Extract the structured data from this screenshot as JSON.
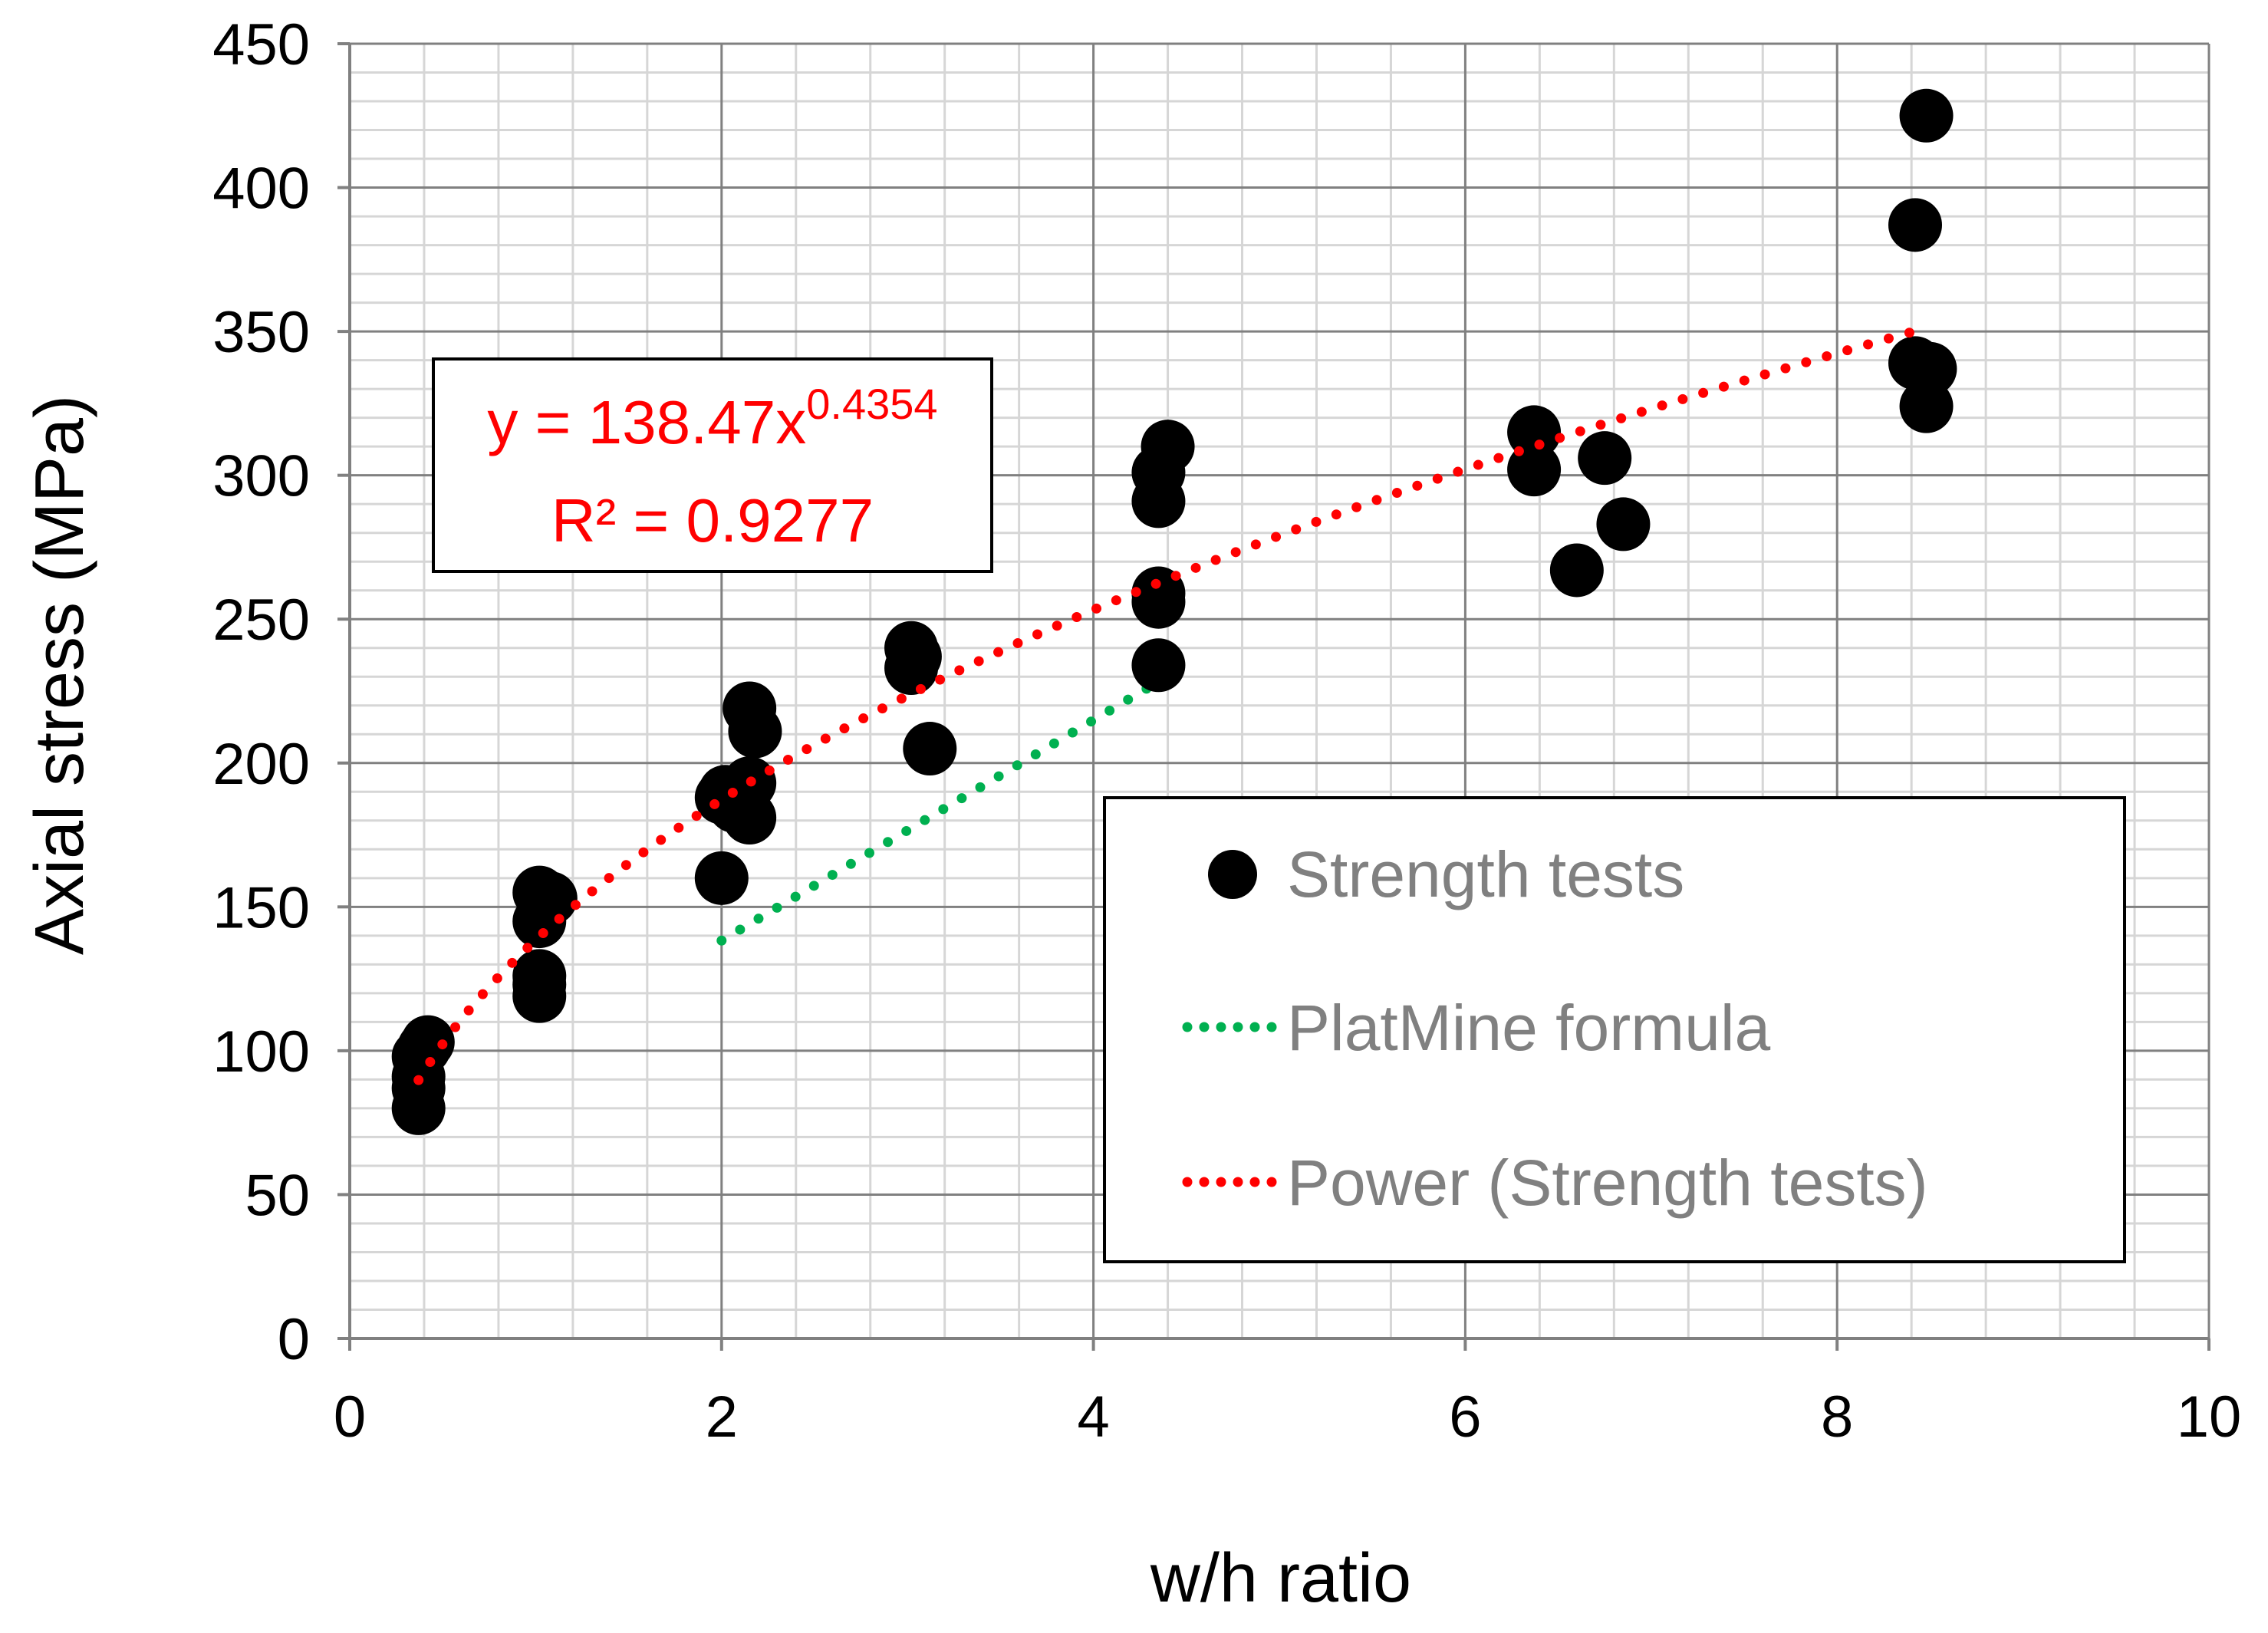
{
  "chart_data": {
    "type": "scatter",
    "title": "",
    "xlabel": "w/h ratio",
    "ylabel": "Axial stress (MPa)",
    "xlim": [
      0,
      10
    ],
    "ylim": [
      0,
      450
    ],
    "x_ticks": [
      "0",
      "2",
      "4",
      "6",
      "8",
      "10"
    ],
    "y_ticks": [
      "0",
      "50",
      "100",
      "150",
      "200",
      "250",
      "300",
      "350",
      "400",
      "450"
    ],
    "grid": true,
    "legend_position": "bottom-right",
    "series": [
      {
        "name": "Strength tests",
        "kind": "scatter",
        "color": "#000000",
        "points": [
          [
            0.37,
            80
          ],
          [
            0.37,
            87
          ],
          [
            0.37,
            91
          ],
          [
            0.37,
            98
          ],
          [
            0.4,
            101
          ],
          [
            0.42,
            103
          ],
          [
            1.02,
            155
          ],
          [
            1.08,
            153
          ],
          [
            1.02,
            145
          ],
          [
            1.02,
            126
          ],
          [
            1.02,
            123
          ],
          [
            1.02,
            119
          ],
          [
            2.0,
            188
          ],
          [
            2.02,
            190
          ],
          [
            2.07,
            185
          ],
          [
            2.15,
            219
          ],
          [
            2.18,
            211
          ],
          [
            2.15,
            193
          ],
          [
            2.15,
            181
          ],
          [
            2.0,
            160
          ],
          [
            3.02,
            240
          ],
          [
            3.04,
            237
          ],
          [
            3.02,
            233
          ],
          [
            3.12,
            205
          ],
          [
            4.35,
            301
          ],
          [
            4.4,
            310
          ],
          [
            4.35,
            291
          ],
          [
            4.35,
            259
          ],
          [
            4.35,
            256
          ],
          [
            4.35,
            234
          ],
          [
            6.37,
            315
          ],
          [
            6.37,
            302
          ],
          [
            6.75,
            306
          ],
          [
            6.6,
            267
          ],
          [
            6.85,
            283
          ],
          [
            8.48,
            425
          ],
          [
            8.42,
            387
          ],
          [
            8.42,
            339
          ],
          [
            8.5,
            337
          ],
          [
            8.48,
            324
          ]
        ]
      },
      {
        "name": "PlatMine formula",
        "kind": "dotted-line",
        "color": "#00b050",
        "x_range": [
          2.0,
          4.3
        ]
      },
      {
        "name": "Power (Strength tests)",
        "kind": "dotted-line",
        "color": "#ff0000",
        "equation": {
          "a": 138.47,
          "b": 0.4354
        },
        "x_range": [
          0.37,
          8.48
        ]
      }
    ],
    "annotation": {
      "equation_base": "y = 138.47x",
      "equation_exponent": "0.4354",
      "r_squared": "R² = 0.9277"
    }
  }
}
